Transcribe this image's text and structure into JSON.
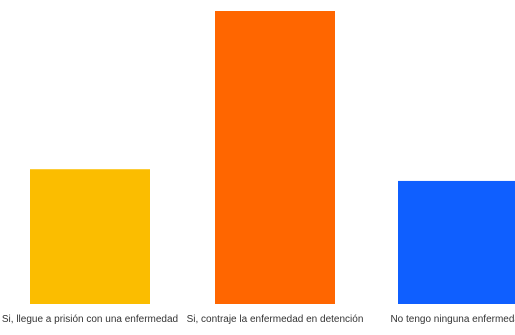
{
  "chart_data": {
    "type": "bar",
    "categories": [
      "Si, llegue a prisión con una enfermedad",
      "Si, contraje la enfermedad en detención",
      "No tengo ninguna enfermedad"
    ],
    "values": [
      46,
      100,
      42
    ],
    "colors": [
      "#FBBD00",
      "#FF6600",
      "#0F5FFF"
    ],
    "title": "",
    "xlabel": "",
    "ylabel": "",
    "ylim": [
      0,
      100
    ],
    "grid": false,
    "legend": "none"
  }
}
